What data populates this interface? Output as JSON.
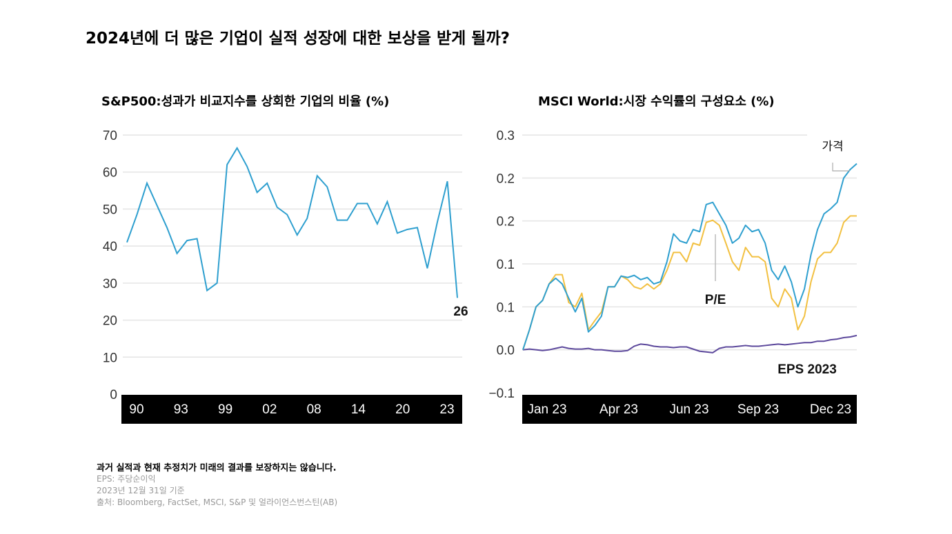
{
  "title": "2024년에 더 많은 기업이 실적 성장에 대한 보상을 받게 될까?",
  "footer": {
    "disclaimer": "과거 실적과 현재 추정치가 미래의 결과를 보장하지는 않습니다.",
    "eps_note": "EPS: 주당순이익",
    "date_note": "2023년 12월 31일 기준",
    "source": "출처: Bloomberg, FactSet, MSCI, S&P 및 얼라이언스번스틴(AB)"
  },
  "colors": {
    "price": "#2e9fcf",
    "pe": "#f2c040",
    "eps": "#5b479b",
    "grid": "#e4e4e4",
    "axis_band": "#000000"
  },
  "chart_data": [
    {
      "type": "line",
      "title": "S&P500:성과가 비교지수를 상회한 기업의 비율 (%)",
      "x": [
        1990,
        1991,
        1992,
        1993,
        1994,
        1995,
        1996,
        1997,
        1998,
        1999,
        2000,
        2001,
        2002,
        2003,
        2004,
        2005,
        2006,
        2007,
        2008,
        2009,
        2010,
        2011,
        2012,
        2013,
        2014,
        2015,
        2016,
        2017,
        2018,
        2019,
        2020,
        2021,
        2022,
        2023
      ],
      "values": [
        41,
        48.5,
        57,
        51,
        45,
        38,
        41.5,
        42,
        28,
        30,
        62,
        66.5,
        61.5,
        54.5,
        57,
        50.5,
        48.5,
        43,
        47.5,
        59,
        56,
        47,
        47,
        51.5,
        51.5,
        46,
        52,
        43.5,
        44.5,
        45,
        34,
        46.5,
        57.5,
        26
      ],
      "ylim": [
        0,
        70
      ],
      "yticks": [
        "0",
        "10",
        "20",
        "30",
        "40",
        "50",
        "60",
        "70"
      ],
      "xtick_labels": [
        "90",
        "93",
        "99",
        "02",
        "08",
        "14",
        "20",
        "23"
      ],
      "end_label": "26",
      "grid": true,
      "color": "#2e9fcf"
    },
    {
      "type": "line",
      "title": "MSCI World:시장 수익률의 구성요소 (%)",
      "ylim": [
        -0.06,
        0.3
      ],
      "yticks": [
        "−0.1",
        "0.0",
        "0.1",
        "0.1",
        "0.2",
        "0.2",
        "0.3"
      ],
      "xtick_labels": [
        "Jan 23",
        "Apr 23",
        "Jun 23",
        "Sep 23",
        "Dec 23"
      ],
      "grid": true,
      "x": [
        "2023-01-06",
        "2023-01-13",
        "2023-01-20",
        "2023-01-27",
        "2023-02-03",
        "2023-02-10",
        "2023-02-17",
        "2023-02-24",
        "2023-03-03",
        "2023-03-10",
        "2023-03-17",
        "2023-03-24",
        "2023-03-31",
        "2023-04-07",
        "2023-04-14",
        "2023-04-21",
        "2023-04-28",
        "2023-05-05",
        "2023-05-12",
        "2023-05-19",
        "2023-05-26",
        "2023-06-02",
        "2023-06-09",
        "2023-06-16",
        "2023-06-23",
        "2023-06-30",
        "2023-07-07",
        "2023-07-14",
        "2023-07-21",
        "2023-07-28",
        "2023-08-04",
        "2023-08-11",
        "2023-08-18",
        "2023-08-25",
        "2023-09-01",
        "2023-09-08",
        "2023-09-15",
        "2023-09-22",
        "2023-09-29",
        "2023-10-06",
        "2023-10-13",
        "2023-10-20",
        "2023-10-27",
        "2023-11-03",
        "2023-11-10",
        "2023-11-17",
        "2023-11-24",
        "2023-12-01",
        "2023-12-08",
        "2023-12-15",
        "2023-12-22",
        "2023-12-29"
      ],
      "series": [
        {
          "name": "가격",
          "key": "price",
          "values": [
            0,
            0.028,
            0.06,
            0.069,
            0.092,
            0.1,
            0.092,
            0.072,
            0.053,
            0.072,
            0.025,
            0.034,
            0.047,
            0.088,
            0.088,
            0.103,
            0.101,
            0.104,
            0.098,
            0.101,
            0.092,
            0.095,
            0.123,
            0.162,
            0.152,
            0.149,
            0.168,
            0.165,
            0.203,
            0.206,
            0.19,
            0.174,
            0.149,
            0.156,
            0.174,
            0.165,
            0.168,
            0.149,
            0.111,
            0.098,
            0.117,
            0.095,
            0.06,
            0.085,
            0.133,
            0.168,
            0.19,
            0.197,
            0.206,
            0.24,
            0.252,
            0.26
          ]
        },
        {
          "name": "P/E",
          "key": "pe",
          "values": [
            0,
            0.028,
            0.06,
            0.069,
            0.092,
            0.105,
            0.105,
            0.066,
            0.06,
            0.079,
            0.028,
            0.041,
            0.053,
            0.088,
            0.088,
            0.103,
            0.098,
            0.088,
            0.085,
            0.092,
            0.085,
            0.092,
            0.111,
            0.136,
            0.136,
            0.123,
            0.149,
            0.146,
            0.178,
            0.181,
            0.174,
            0.149,
            0.123,
            0.111,
            0.143,
            0.13,
            0.13,
            0.123,
            0.072,
            0.06,
            0.085,
            0.072,
            0.028,
            0.047,
            0.095,
            0.127,
            0.136,
            0.136,
            0.149,
            0.178,
            0.187,
            0.187
          ]
        },
        {
          "name": "EPS 2023",
          "key": "eps",
          "values": [
            0,
            0.001,
            0,
            -0.001,
            0,
            0.002,
            0.004,
            0.002,
            0.001,
            0.001,
            0.002,
            0,
            0,
            -0.001,
            -0.002,
            -0.002,
            -0.001,
            0.005,
            0.008,
            0.007,
            0.005,
            0.004,
            0.004,
            0.003,
            0.004,
            0.004,
            0.001,
            -0.002,
            -0.003,
            -0.004,
            0.002,
            0.004,
            0.004,
            0.005,
            0.006,
            0.005,
            0.005,
            0.006,
            0.007,
            0.008,
            0.007,
            0.008,
            0.009,
            0.01,
            0.01,
            0.012,
            0.012,
            0.014,
            0.015,
            0.017,
            0.018,
            0.02
          ]
        }
      ]
    }
  ]
}
